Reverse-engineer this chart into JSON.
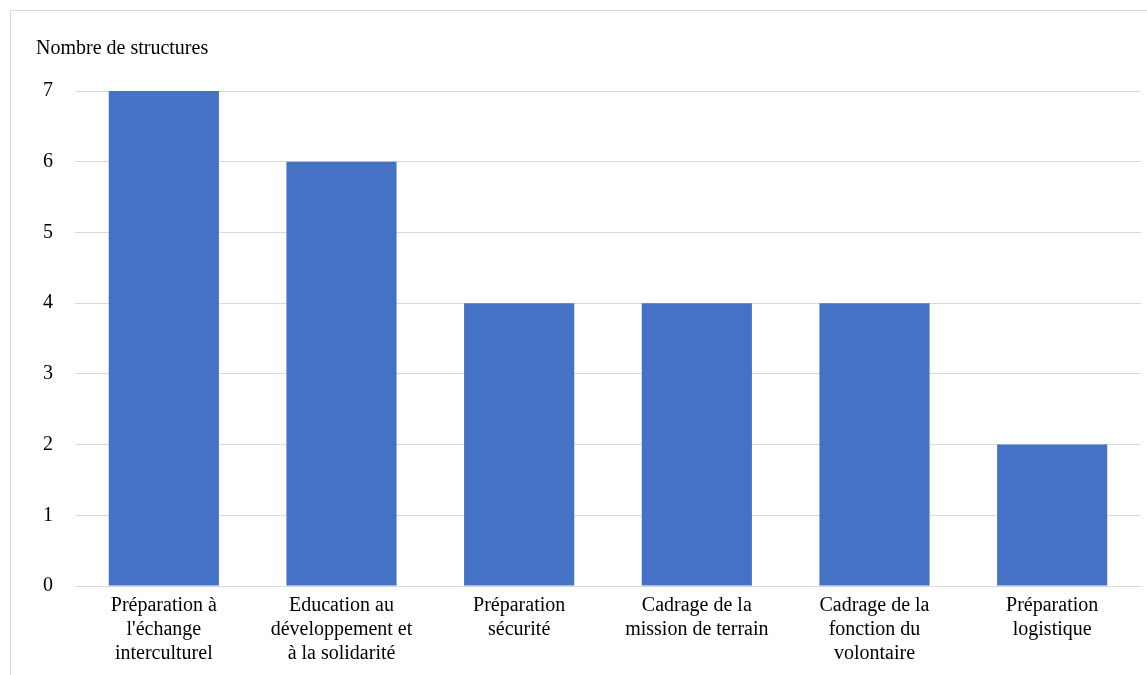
{
  "chart_data": {
    "type": "bar",
    "ylabel": "Nombre de structures",
    "categories": [
      "Préparation à l'échange interculturel",
      "Education au développement et à la solidarité",
      "Préparation sécurité",
      "Cadrage de la mission de terrain",
      "Cadrage de la fonction du volontaire",
      "Préparation logistique"
    ],
    "values": [
      7,
      6,
      4,
      4,
      4,
      2
    ],
    "color": "#4472c4",
    "ylim": [
      0,
      7
    ],
    "yticks": [
      0,
      1,
      2,
      3,
      4,
      5,
      6,
      7
    ],
    "grid": "y",
    "legend": false
  }
}
